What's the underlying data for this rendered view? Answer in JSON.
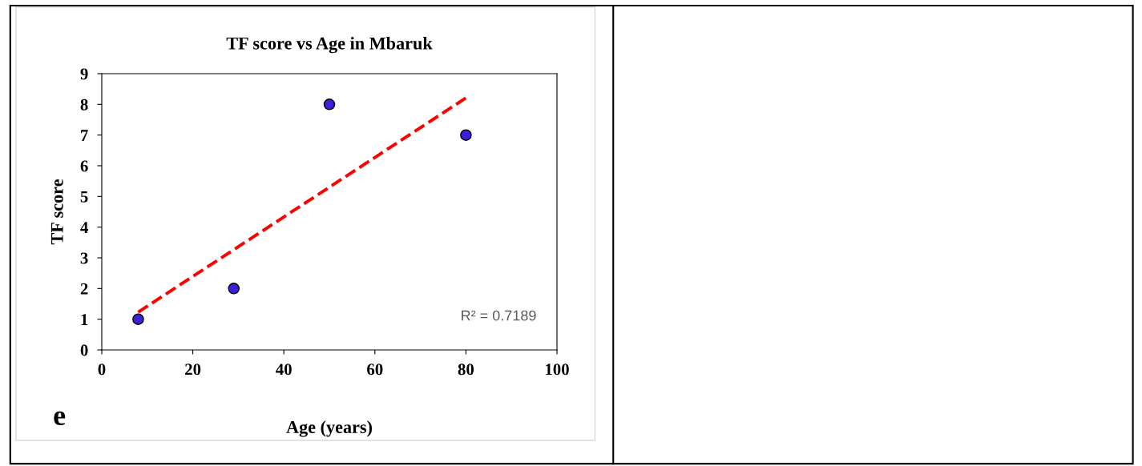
{
  "chart_data": {
    "type": "scatter",
    "title": "TF score vs Age in Mbaruk",
    "xlabel": "Age (years)",
    "ylabel": "TF score",
    "series": [
      {
        "x": [
          8,
          29,
          50,
          80
        ],
        "values": [
          1,
          2,
          8,
          7
        ],
        "color": "#3b1fd9",
        "marker": "circle"
      },
      {
        "type": "line",
        "x": [
          8,
          80
        ],
        "values": [
          1.23,
          8.21
        ],
        "color": "#ff0000",
        "line_style": "dashed",
        "marker": "none"
      }
    ],
    "xlim": [
      0,
      100
    ],
    "xticks": [
      0,
      20,
      40,
      60,
      80,
      100
    ],
    "ylim": [
      0,
      9
    ],
    "yticks": [
      0,
      1,
      2,
      3,
      4,
      5,
      6,
      7,
      8,
      9
    ],
    "grid": false,
    "legend": false,
    "annotations": [
      "R² = 0.7189",
      "e"
    ]
  }
}
